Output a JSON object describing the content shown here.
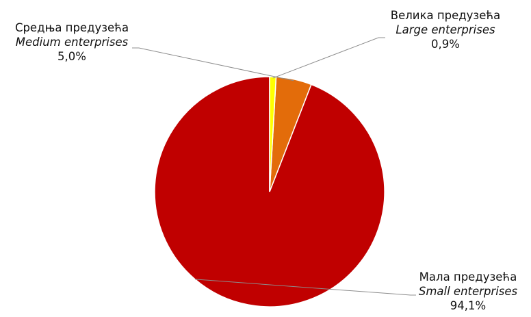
{
  "chart_data": {
    "type": "pie",
    "series": [
      {
        "values": [
          94.1,
          5.0,
          0.9
        ],
        "colors": [
          "#c00000",
          "#e36c0a",
          "#ffff00"
        ]
      }
    ],
    "slices": [
      {
        "name_sr": "Мала предузећа",
        "name_en": "Small enterprises",
        "value": 94.1,
        "label": "94,1%",
        "color": "#c00000"
      },
      {
        "name_sr": "Средња предузећа",
        "name_en": "Medium enterprises",
        "value": 5.0,
        "label": "5,0%",
        "color": "#e36c0a"
      },
      {
        "name_sr": "Велика предузећа",
        "name_en": "Large enterprises",
        "value": 0.9,
        "label": "0,9%",
        "color": "#ffff00"
      }
    ],
    "start_angle_deg": 0,
    "direction": "counterclockwise",
    "slice_border_color": "#ffffff",
    "leader_line_color": "#8c8c8c"
  }
}
